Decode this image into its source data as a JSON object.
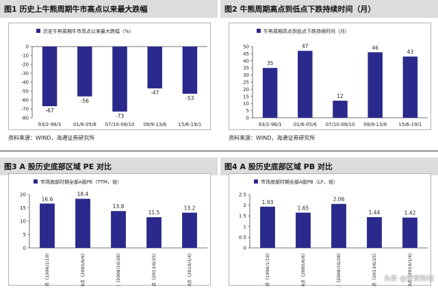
{
  "colors": {
    "bar": "#2a2a8c",
    "header": "#dcdcdc",
    "axis": "#444444"
  },
  "panels": [
    {
      "title": "图1  历史上牛熊周期牛市高点以来最大跌幅",
      "source": "资料来源：WIND，海通证券研究所"
    },
    {
      "title": "图2  牛熊周期高点到低点下跌持续时间（月）",
      "source": "资料来源：WIND，海通证券研究所"
    },
    {
      "title": "图3  A 股历史底部区域 PE 对比",
      "source": ""
    },
    {
      "title": "图4  A 股历史底部区域 PB 对比",
      "source": ""
    }
  ],
  "watermark": "头条 @安安财经",
  "chart_data": [
    {
      "type": "bar",
      "title": "历史牛熊周期牛市高点以来最大跌幅（%）",
      "categories": [
        "93/2-96/1",
        "01/6-05/6",
        "07/10-08/10",
        "09/9-13/6",
        "15/6-19/1"
      ],
      "series": [
        {
          "values": [
            -67,
            -56,
            -73,
            -47,
            -53
          ]
        }
      ],
      "ylim": [
        -80,
        0
      ],
      "yticks": [
        0,
        -10,
        -20,
        -30,
        -40,
        -50,
        -60,
        -70,
        -80
      ],
      "label_pos": "bottom"
    },
    {
      "type": "bar",
      "title": "牛熊周期高点到低点下跌持续时间（月）",
      "categories": [
        "93/2-96/1",
        "01/6-05/6",
        "07/10-08/10",
        "09/9-13/6",
        "15/6-19/1"
      ],
      "series": [
        {
          "values": [
            35,
            47,
            12,
            46,
            43
          ]
        }
      ],
      "ylim": [
        0,
        50
      ],
      "yticks": [
        0,
        5,
        10,
        15,
        20,
        25,
        30,
        35,
        40,
        45,
        50
      ],
      "label_pos": "top"
    },
    {
      "type": "bar",
      "title": "市场底部时期全部A股PE（TTM，倍）",
      "categories": [
        "512点（1996/1/19）",
        "998点（2005/6/6）",
        "1664点（2008/10/28）",
        "1849点（2013/6/25）",
        "2440点（2019/1/4）"
      ],
      "series": [
        {
          "values": [
            16.6,
            18.4,
            13.8,
            11.5,
            13.2
          ]
        }
      ],
      "ylim": [
        0,
        20
      ],
      "yticks": [
        0,
        5,
        10,
        15,
        20
      ],
      "label_pos": "top"
    },
    {
      "type": "bar",
      "title": "市场底部时期全部A股PB（LF，倍）",
      "categories": [
        "512点（1996/1/19）",
        "998点（2005/6/6）",
        "1664点（2008/10/28）",
        "1849点（2013/6/25）",
        "2440点（2019/1/4）"
      ],
      "series": [
        {
          "values": [
            1.93,
            1.65,
            2.06,
            1.44,
            1.42
          ]
        }
      ],
      "ylim": [
        0,
        2.5
      ],
      "yticks": [
        0,
        0.5,
        1,
        1.5,
        2,
        2.5
      ],
      "label_pos": "top"
    }
  ]
}
